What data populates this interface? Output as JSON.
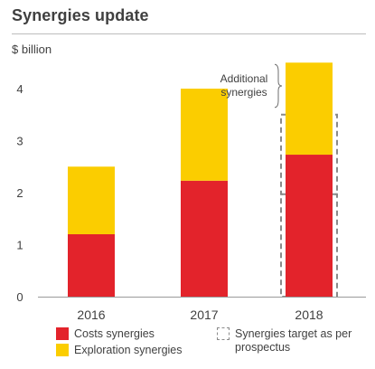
{
  "header": {
    "title": "Synergies update",
    "unit": "$ billion"
  },
  "legend": {
    "costs": "Costs synergies",
    "exploration": "Exploration synergies",
    "target_line1": "Synergies target as per",
    "target_line2": "prospectus"
  },
  "annotation": {
    "line1": "Additional",
    "line2": "synergies"
  },
  "colors": {
    "costs": "#e3232b",
    "exploration": "#fbcd00",
    "target_border": "#8a8a8a"
  },
  "chart_data": {
    "type": "bar",
    "stacked": true,
    "categories": [
      "2016",
      "2017",
      "2018"
    ],
    "series": [
      {
        "name": "Costs synergies",
        "values": [
          1.2,
          2.23,
          2.73
        ]
      },
      {
        "name": "Exploration synergies",
        "values": [
          1.3,
          1.77,
          1.77
        ]
      }
    ],
    "target": {
      "name": "Synergies target as per prospectus",
      "category": "2018",
      "segments": [
        1.97,
        1.53
      ]
    },
    "ylabel": "$ billion",
    "ylim": [
      0,
      4.5
    ],
    "yticks": [
      0,
      1,
      2,
      3,
      4
    ],
    "title": "Synergies update"
  }
}
